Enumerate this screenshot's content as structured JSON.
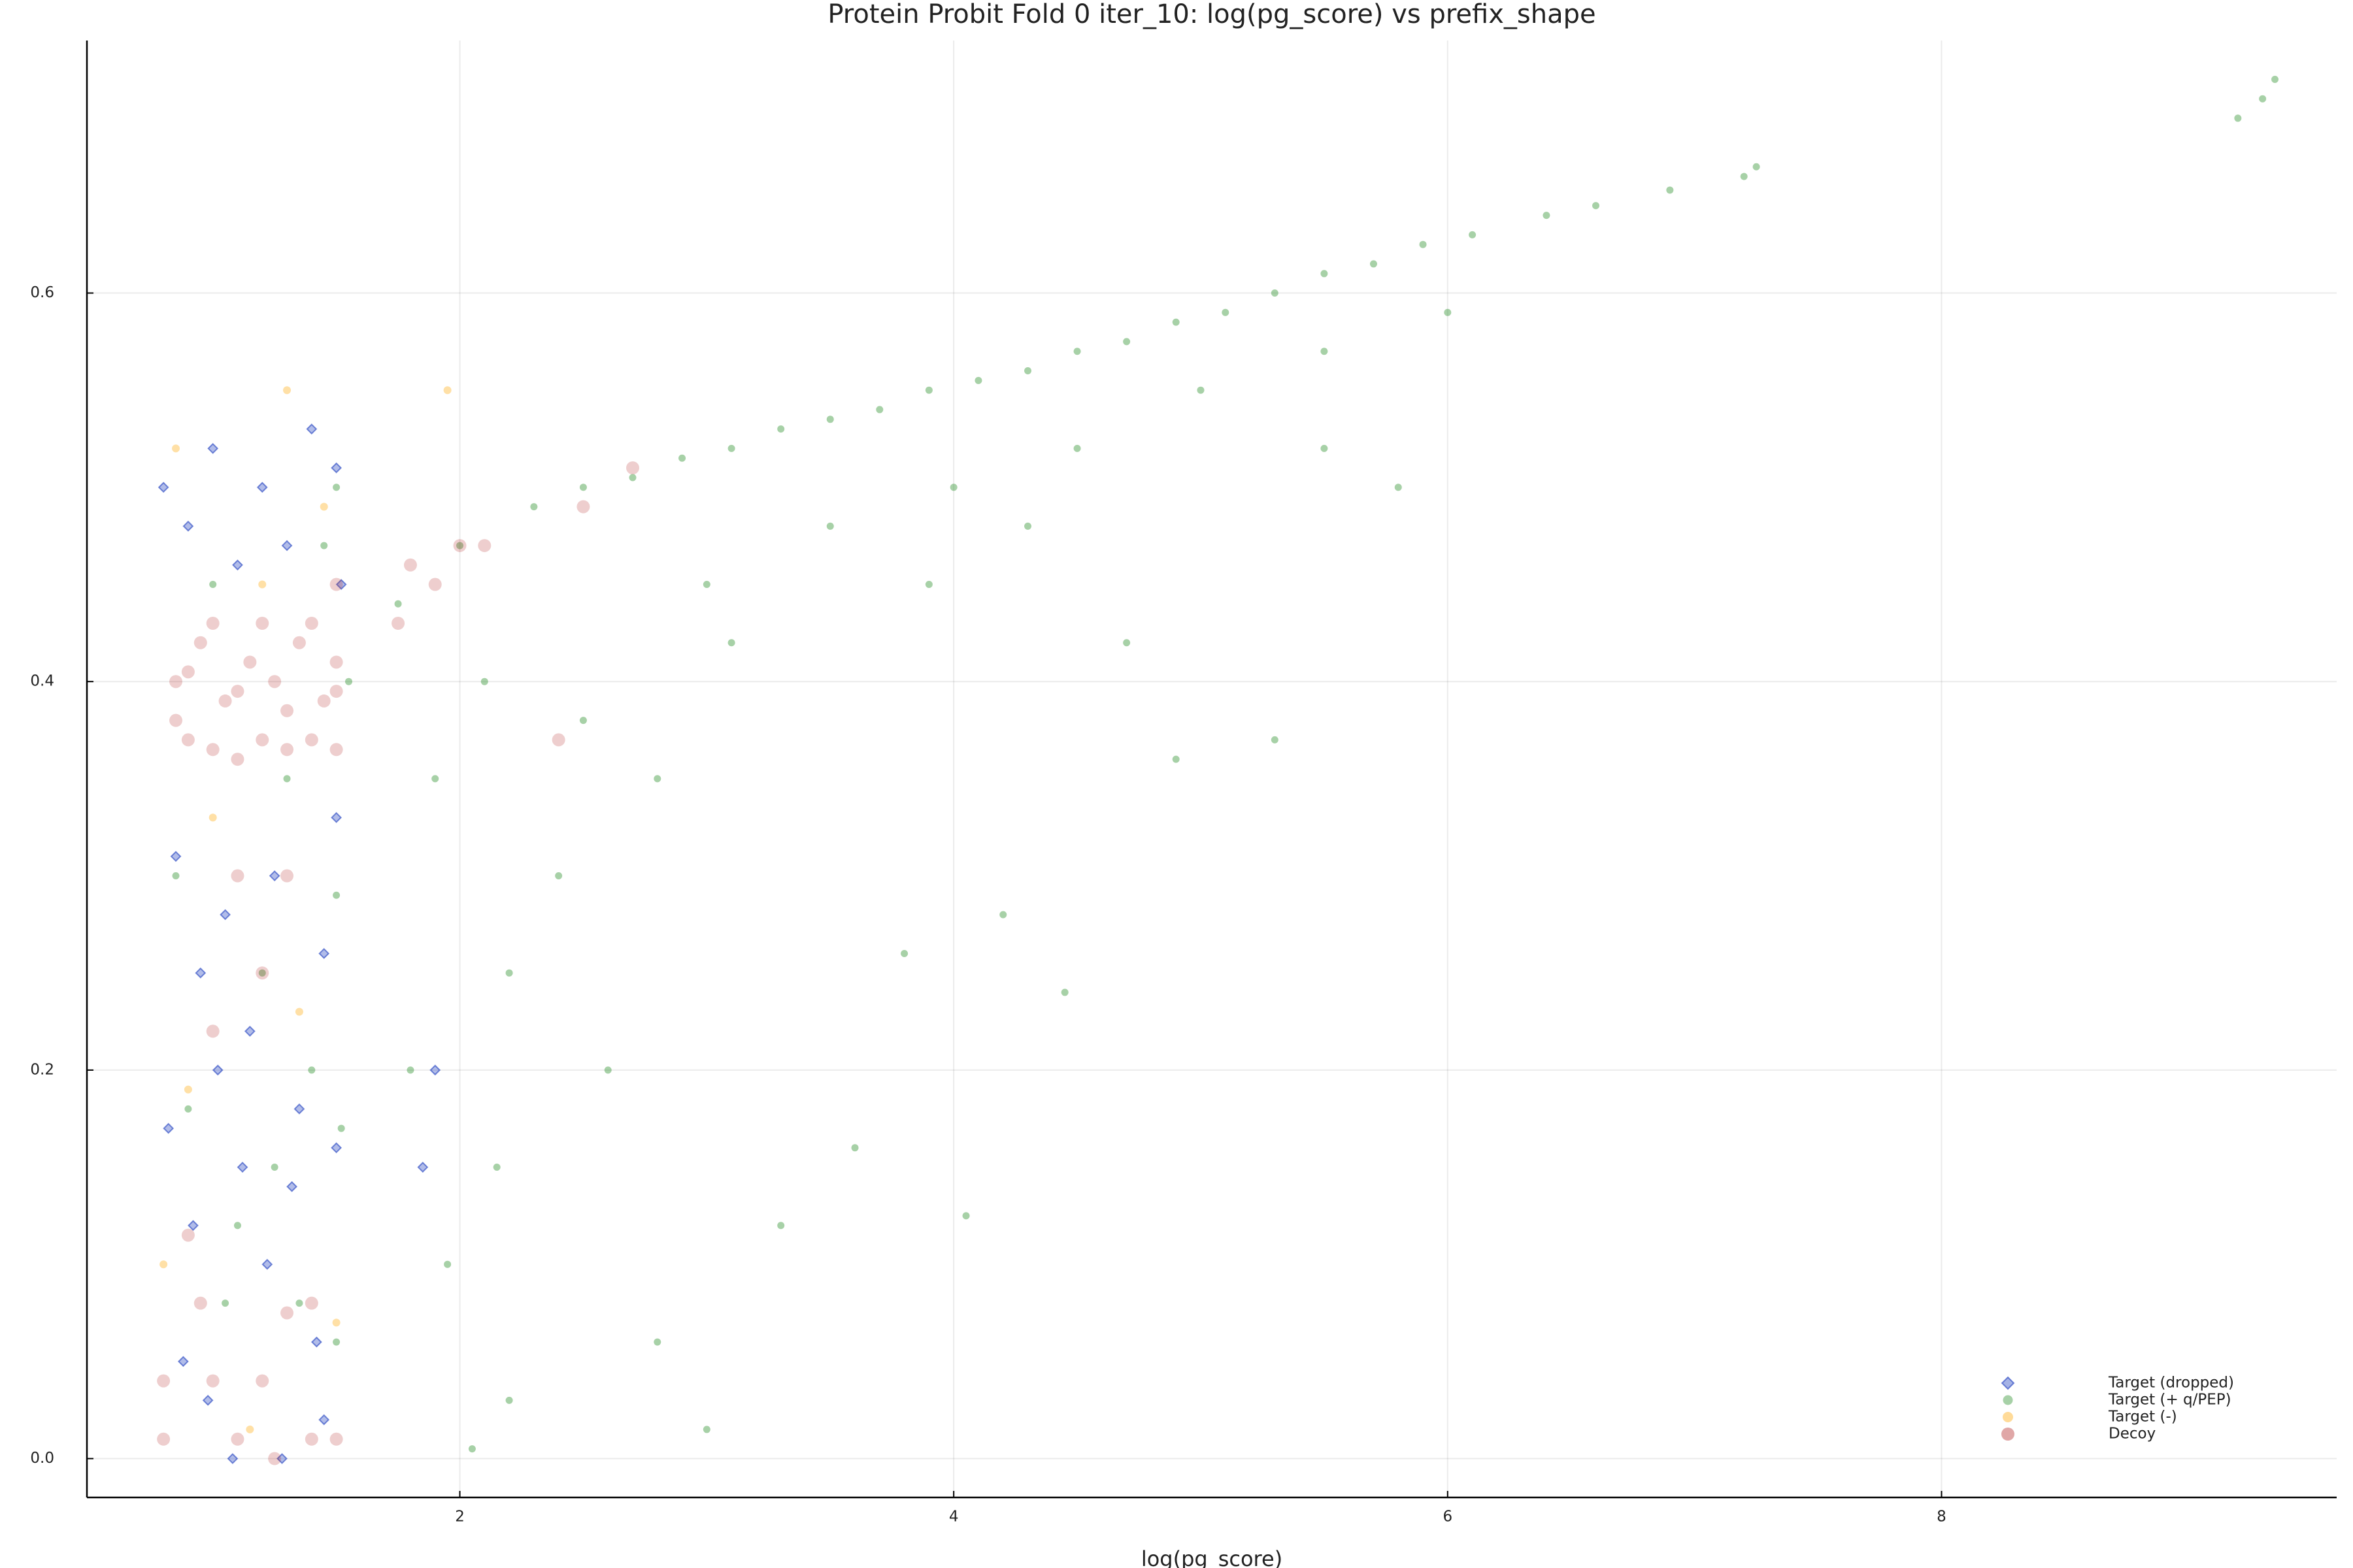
{
  "chart_data": {
    "type": "scatter",
    "title": "Protein Probit Fold 0 iter_10: log(pg_score) vs prefix_shape",
    "xlabel": "log(pg_score)",
    "xlim": [
      0.49,
      9.6
    ],
    "ylim": [
      -0.02,
      0.73
    ],
    "xticks": [
      2,
      4,
      6,
      8
    ],
    "yticks": [
      {
        "value": 0,
        "label": "0.0"
      },
      0.2,
      0.4,
      0.6
    ],
    "grid": true,
    "legend": "bottom right",
    "series": [
      {
        "name": "Target (dropped)",
        "color": "#1f3fbf",
        "marker": "diamond",
        "x": [
          0.8,
          0.9,
          1.0,
          1.1,
          1.2,
          1.3,
          1.4,
          1.5,
          1.52,
          0.85,
          0.95,
          1.05,
          1.15,
          1.25,
          1.35,
          1.45,
          1.5,
          0.82,
          0.92,
          1.02,
          1.12,
          1.22,
          1.32,
          1.42,
          1.5,
          0.88,
          0.98,
          1.08,
          1.28,
          1.45,
          1.85,
          1.9
        ],
        "y": [
          0.5,
          0.48,
          0.52,
          0.46,
          0.5,
          0.47,
          0.53,
          0.51,
          0.45,
          0.31,
          0.25,
          0.28,
          0.22,
          0.3,
          0.18,
          0.26,
          0.33,
          0.17,
          0.12,
          0.2,
          0.15,
          0.1,
          0.14,
          0.06,
          0.16,
          0.05,
          0.03,
          0.0,
          0.0,
          0.02,
          0.15,
          0.2
        ]
      },
      {
        "name": "Target (+ q/PEP)",
        "color": "#228b22",
        "marker": "circle",
        "x": [
          2.3,
          2.5,
          2.7,
          2.9,
          3.1,
          3.3,
          3.5,
          3.7,
          3.9,
          4.1,
          4.3,
          4.5,
          4.7,
          4.9,
          5.1,
          5.3,
          5.5,
          5.7,
          5.9,
          6.1,
          6.4,
          6.6,
          6.9,
          7.25,
          7.2,
          9.2,
          9.35,
          9.3,
          3.0,
          3.5,
          4.0,
          4.5,
          5.0,
          5.5,
          6.0,
          4.7,
          5.3,
          4.9,
          4.2,
          4.45,
          3.8,
          3.6,
          4.05,
          3.3,
          2.8,
          3.0,
          2.6,
          2.4,
          2.5,
          2.8,
          3.1,
          2.2,
          2.2,
          2.1,
          2.0,
          1.9,
          1.8,
          1.95,
          2.15,
          1.75,
          2.05,
          3.9,
          4.3,
          5.8,
          5.5,
          0.85,
          0.9,
          1.0,
          1.1,
          1.2,
          1.3,
          1.4,
          1.5,
          1.52,
          1.5,
          1.45,
          1.35,
          1.25,
          1.05,
          1.55,
          1.5
        ],
        "y": [
          0.49,
          0.5,
          0.505,
          0.515,
          0.52,
          0.53,
          0.535,
          0.54,
          0.55,
          0.555,
          0.56,
          0.57,
          0.575,
          0.585,
          0.59,
          0.6,
          0.61,
          0.615,
          0.625,
          0.63,
          0.64,
          0.645,
          0.653,
          0.665,
          0.66,
          0.69,
          0.71,
          0.7,
          0.45,
          0.48,
          0.5,
          0.52,
          0.55,
          0.57,
          0.59,
          0.42,
          0.37,
          0.36,
          0.28,
          0.24,
          0.26,
          0.16,
          0.125,
          0.12,
          0.06,
          0.015,
          0.2,
          0.3,
          0.38,
          0.35,
          0.42,
          0.03,
          0.25,
          0.4,
          0.47,
          0.35,
          0.2,
          0.1,
          0.15,
          0.44,
          0.005,
          0.45,
          0.48,
          0.5,
          0.52,
          0.3,
          0.18,
          0.45,
          0.12,
          0.25,
          0.35,
          0.2,
          0.29,
          0.17,
          0.06,
          0.47,
          0.08,
          0.15,
          0.08,
          0.4,
          0.5
        ]
      },
      {
        "name": "Target (-)",
        "color": "#ffa500",
        "marker": "circle",
        "x": [
          0.85,
          1.3,
          1.45,
          1.2,
          1.0,
          1.35,
          0.9,
          1.5,
          0.8,
          1.95,
          1.15
        ],
        "y": [
          0.52,
          0.55,
          0.49,
          0.45,
          0.33,
          0.23,
          0.19,
          0.07,
          0.1,
          0.55,
          0.015
        ]
      },
      {
        "name": "Decoy",
        "color": "#b22222",
        "marker": "circle",
        "x": [
          0.85,
          0.95,
          1.05,
          1.15,
          1.25,
          1.35,
          1.45,
          1.5,
          0.9,
          1.0,
          1.1,
          1.2,
          1.3,
          1.4,
          1.5,
          0.85,
          1.0,
          1.2,
          1.4,
          0.9,
          1.1,
          1.3,
          1.5,
          1.8,
          2.0,
          2.1,
          1.9,
          2.5,
          2.7,
          1.5,
          1.1,
          1.3,
          1.2,
          1.0,
          1.4,
          1.3,
          0.95,
          0.8,
          1.0,
          1.2,
          0.8,
          1.1,
          1.4,
          1.5,
          1.25,
          2.4,
          1.75,
          0.9
        ],
        "y": [
          0.4,
          0.42,
          0.39,
          0.41,
          0.4,
          0.42,
          0.39,
          0.41,
          0.37,
          0.365,
          0.36,
          0.37,
          0.365,
          0.37,
          0.365,
          0.38,
          0.43,
          0.43,
          0.43,
          0.405,
          0.395,
          0.385,
          0.395,
          0.46,
          0.47,
          0.47,
          0.45,
          0.49,
          0.51,
          0.45,
          0.3,
          0.3,
          0.25,
          0.22,
          0.08,
          0.075,
          0.08,
          0.04,
          0.04,
          0.04,
          0.01,
          0.01,
          0.01,
          0.01,
          0.0,
          0.37,
          0.43,
          0.115
        ]
      }
    ]
  }
}
